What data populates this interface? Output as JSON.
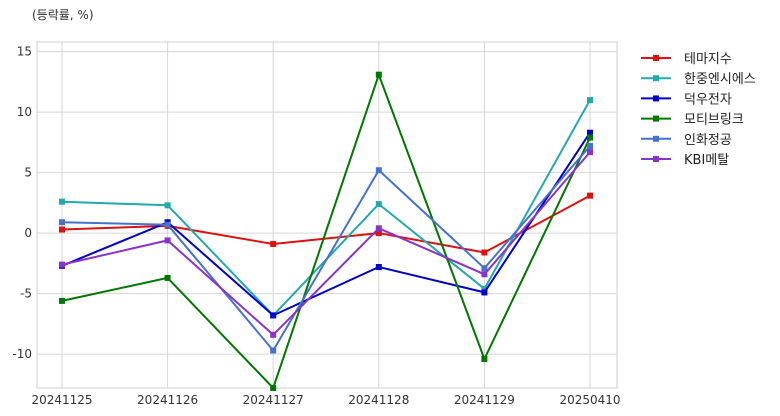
{
  "chart_data": {
    "type": "line",
    "unit_label": "(등락률, %)",
    "categories": [
      "20241125",
      "20241126",
      "20241127",
      "20241128",
      "20241129",
      "20250410"
    ],
    "ylim": [
      -12.8,
      15.8
    ],
    "yticks": [
      -10,
      -5,
      0,
      5,
      10,
      15
    ],
    "grid": true,
    "legend_position": "right",
    "series": [
      {
        "name": "테마지수",
        "color": "#dd1111",
        "values": [
          0.3,
          0.6,
          -0.9,
          0.0,
          -1.6,
          3.1
        ]
      },
      {
        "name": "한중엔시에스",
        "color": "#22aaaa",
        "values": [
          2.6,
          2.3,
          -6.8,
          2.4,
          -4.6,
          11.0
        ]
      },
      {
        "name": "덕우전자",
        "color": "#0000cc",
        "values": [
          -2.7,
          0.9,
          -6.8,
          -2.8,
          -4.9,
          8.3
        ]
      },
      {
        "name": "모티브링크",
        "color": "#007700",
        "values": [
          -5.6,
          -3.7,
          -12.8,
          13.1,
          -10.4,
          7.9
        ]
      },
      {
        "name": "인화정공",
        "color": "#4472cc",
        "values": [
          0.9,
          0.7,
          -9.7,
          5.2,
          -2.9,
          7.2
        ]
      },
      {
        "name": "KBI메탈",
        "color": "#8833cc",
        "values": [
          -2.6,
          -0.6,
          -8.4,
          0.4,
          -3.4,
          6.7
        ]
      }
    ]
  }
}
